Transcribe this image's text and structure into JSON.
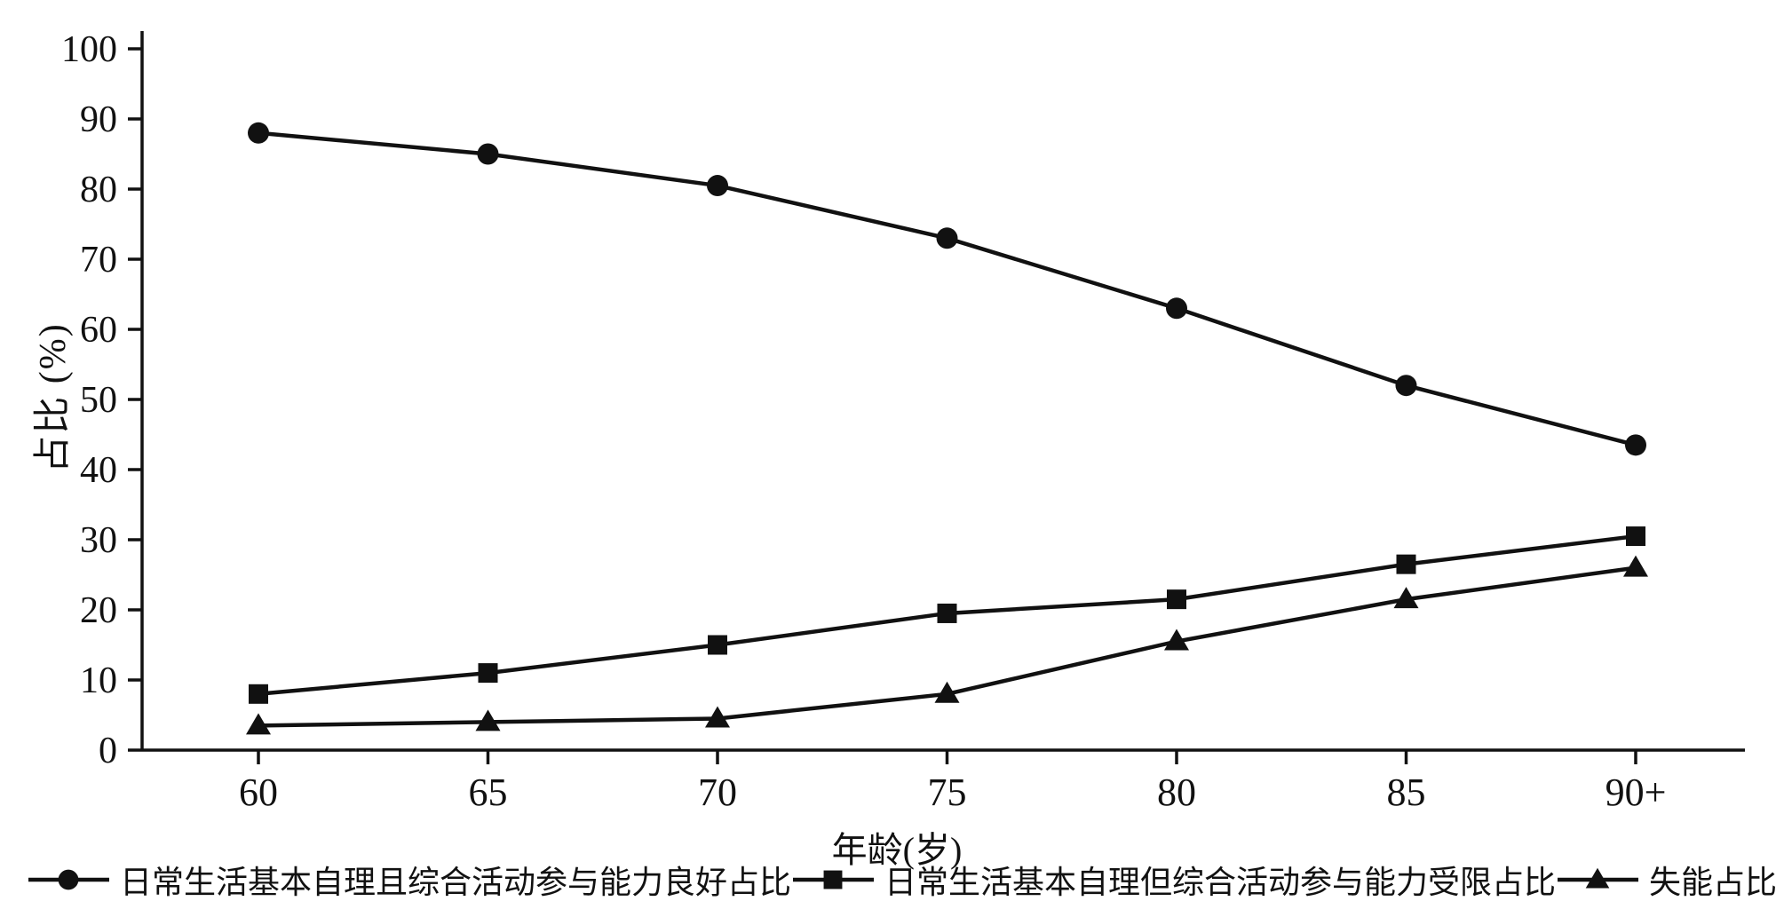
{
  "chart_data": {
    "type": "line",
    "title": "",
    "categories": [
      "60",
      "65",
      "70",
      "75",
      "80",
      "85",
      "90+"
    ],
    "series": [
      {
        "name": "日常生活基本自理且综合活动参与能力良好占比",
        "marker": "circle",
        "values": [
          88,
          85,
          80.5,
          73,
          63,
          52,
          43.5
        ]
      },
      {
        "name": "日常生活基本自理但综合活动参与能力受限占比",
        "marker": "square",
        "values": [
          8,
          11,
          15,
          19.5,
          21.5,
          26.5,
          30.5
        ]
      },
      {
        "name": "失能占比",
        "marker": "triangle",
        "values": [
          3.5,
          4,
          4.5,
          8,
          15.5,
          21.5,
          26
        ]
      }
    ],
    "xlabel": "年龄(岁)",
    "ylabel": "占比 (%)",
    "ylim": [
      0,
      100
    ],
    "ytick_step": 10,
    "yticks": [
      "0",
      "10",
      "20",
      "30",
      "40",
      "50",
      "60",
      "70",
      "80",
      "90",
      "100"
    ],
    "grid": false,
    "legend_position": "bottom",
    "line_color": "#111111",
    "background": "#ffffff"
  }
}
